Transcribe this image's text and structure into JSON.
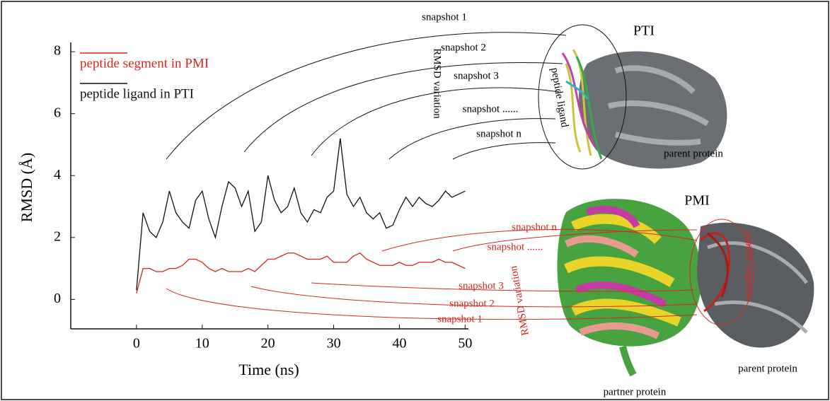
{
  "chart_data": {
    "type": "line",
    "xlabel": "Time (ns)",
    "ylabel": "RMSD (Å)",
    "x": [
      0,
      1,
      2,
      3,
      4,
      5,
      6,
      7,
      8,
      9,
      10,
      11,
      12,
      13,
      14,
      15,
      16,
      17,
      18,
      19,
      20,
      21,
      22,
      23,
      24,
      25,
      26,
      27,
      28,
      29,
      30,
      31,
      32,
      33,
      34,
      35,
      36,
      37,
      38,
      39,
      40,
      41,
      42,
      43,
      44,
      45,
      46,
      47,
      48,
      49,
      50
    ],
    "series": [
      {
        "name": "peptide segment in PMI",
        "color": "#d7261e",
        "values": [
          0.2,
          1.0,
          1.0,
          0.9,
          0.9,
          1.0,
          1.0,
          1.1,
          1.3,
          1.3,
          1.2,
          1.0,
          0.9,
          1.0,
          0.9,
          0.9,
          0.9,
          1.0,
          0.9,
          1.1,
          1.3,
          1.3,
          1.4,
          1.5,
          1.5,
          1.4,
          1.3,
          1.3,
          1.3,
          1.4,
          1.2,
          1.2,
          1.2,
          1.4,
          1.5,
          1.3,
          1.2,
          1.1,
          1.1,
          1.1,
          1.2,
          1.1,
          1.1,
          1.2,
          1.2,
          1.2,
          1.3,
          1.2,
          1.2,
          1.1,
          1.0
        ]
      },
      {
        "name": "peptide ligand in PTI",
        "color": "#111111",
        "values": [
          0.3,
          2.8,
          2.2,
          2.0,
          2.5,
          3.5,
          2.8,
          2.5,
          2.3,
          3.2,
          3.5,
          2.6,
          2.0,
          3.0,
          3.8,
          3.6,
          3.0,
          3.5,
          2.2,
          2.5,
          4.0,
          3.2,
          2.8,
          3.0,
          3.6,
          2.8,
          2.5,
          2.9,
          2.8,
          3.3,
          3.5,
          5.2,
          3.4,
          3.0,
          3.3,
          2.8,
          2.6,
          2.8,
          2.3,
          2.4,
          2.9,
          3.3,
          3.0,
          3.3,
          3.1,
          3.0,
          3.2,
          3.5,
          3.3,
          3.4,
          3.5
        ]
      }
    ],
    "xlim": [
      -10,
      50.5
    ],
    "xticks": [
      0,
      10,
      20,
      30,
      40,
      50
    ],
    "ylim": [
      -0.95,
      8.3
    ],
    "yticks": [
      0,
      2,
      4,
      6,
      8
    ],
    "legend": "upper left",
    "annotations": {
      "pti": {
        "title": "PTI",
        "snapshots": [
          "snapshot 1",
          "snapshot 2",
          "snapshot 3",
          "snapshot ......",
          "snapshot n"
        ],
        "rmsd_label": "RMSD variation",
        "peptide_label": "peptide ligand",
        "protein_label": "parent protein"
      },
      "pmi": {
        "title": "PMI",
        "snapshots": [
          "snapshot 1",
          "snapshot 2",
          "snapshot 3",
          "snapshot ......",
          "snapshot n"
        ],
        "rmsd_label": "RMSD variation",
        "peptide_label": "peptide segment",
        "protein_label": "parent protein",
        "partner_label": "partner protein"
      }
    }
  }
}
